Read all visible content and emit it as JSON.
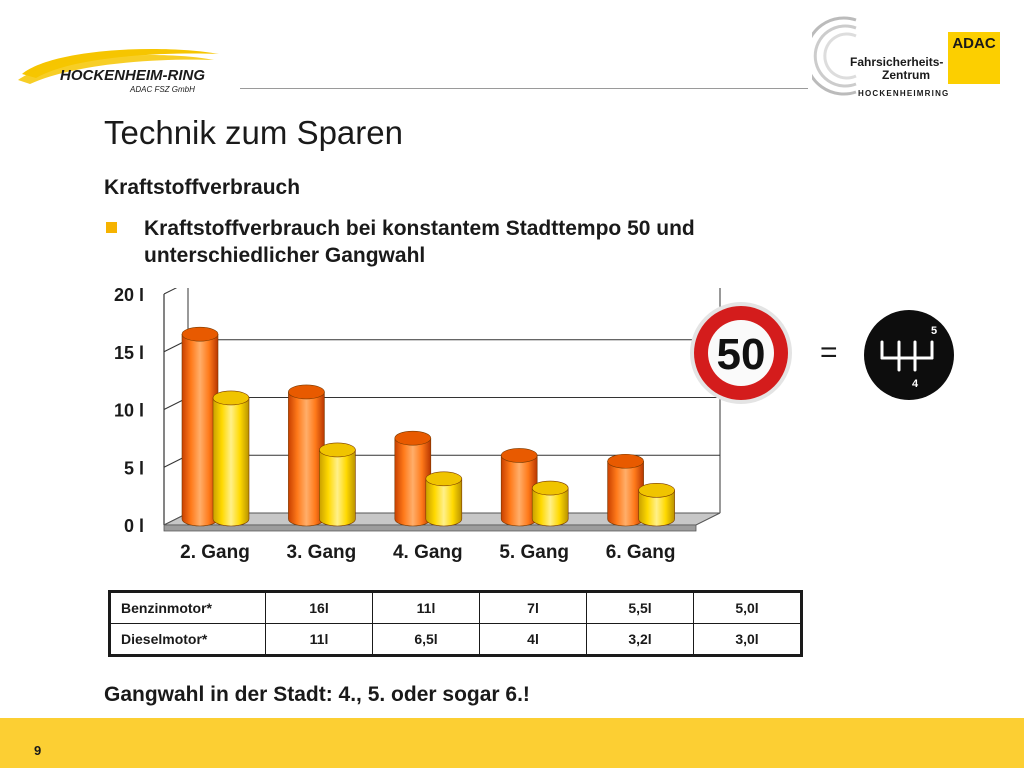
{
  "header": {
    "left_logo": {
      "name": "HOCKENHEIM-RING",
      "sub": "ADAC FSZ GmbH"
    },
    "right_logo": {
      "line1": "Fahrsicherheits-",
      "line2": "Zentrum",
      "line3": "HOCKENHEIMRING",
      "badge": "ADAC"
    }
  },
  "title": "Technik zum Sparen",
  "subtitle": "Kraftstoffverbrauch",
  "bullet": "Kraftstoffverbrauch bei konstantem Stadttempo 50 und unterschiedlicher Gangwahl",
  "chart_data": {
    "type": "bar",
    "categories": [
      "2. Gang",
      "3. Gang",
      "4. Gang",
      "5. Gang",
      "6. Gang"
    ],
    "series": [
      {
        "values": [
          16,
          11,
          7,
          5.5,
          5.0
        ],
        "color": "#ff6a00"
      },
      {
        "values": [
          11,
          6.5,
          4,
          3.2,
          3.0
        ],
        "color": "#ffd200"
      }
    ],
    "ylim": [
      0,
      20
    ],
    "yticks": [
      0,
      5,
      10,
      15,
      20
    ],
    "ytick_labels": [
      "0 l",
      "5 l",
      "10 l",
      "15 l",
      "20 l"
    ],
    "grid": true,
    "style": "3d-cylinder"
  },
  "sign": {
    "speed": "50"
  },
  "equals": "=",
  "gearshift": {
    "top": "5",
    "bottom": "4"
  },
  "table": {
    "rows": [
      {
        "label": "Benzinmotor*",
        "values": [
          "16l",
          "11l",
          "7l",
          "5,5l",
          "5,0l"
        ]
      },
      {
        "label": "Dieselmotor*",
        "values": [
          "11l",
          "6,5l",
          "4l",
          "3,2l",
          "3,0l"
        ]
      }
    ]
  },
  "conclusion": "Gangwahl in der Stadt: 4., 5. oder sogar 6.!",
  "footer": {
    "page_number": "9",
    "color": "#fccf33"
  }
}
